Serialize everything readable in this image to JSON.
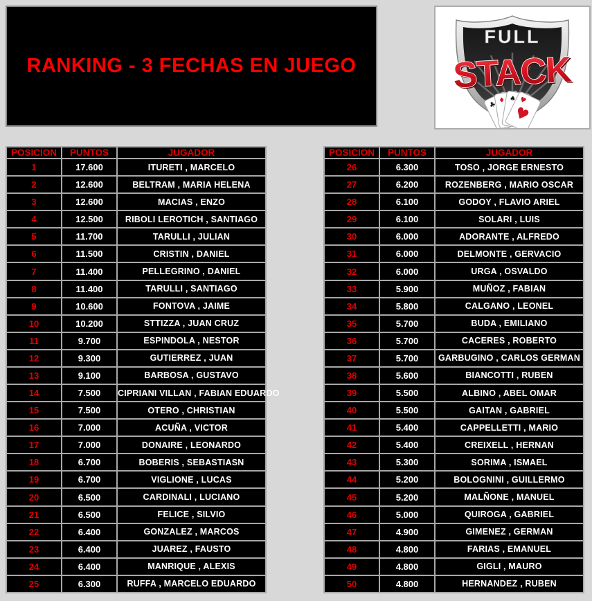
{
  "page": {
    "background": "#d8d8d8",
    "grid_color": "#a8a8a8",
    "cell_bg": "#000000",
    "accent_red": "#e00000",
    "title_red": "#fd0000",
    "text_white": "#ffffff"
  },
  "header": {
    "title": "RANKING - 3 FECHAS EN JUEGO"
  },
  "logo": {
    "line1": "FULL",
    "line2": "STACK",
    "cards": [
      {
        "suit": "♣",
        "color": "#1a1a1a"
      },
      {
        "suit": "♦",
        "color": "#d01325"
      },
      {
        "suit": "♠",
        "color": "#1a1a1a"
      },
      {
        "suit": "♥",
        "color": "#d01325"
      }
    ]
  },
  "tables": [
    {
      "headers": [
        "POSICION",
        "PUNTOS",
        "JUGADOR"
      ],
      "rows": [
        {
          "posicion": "1",
          "puntos": "17.600",
          "jugador": "ITURETI , MARCELO"
        },
        {
          "posicion": "2",
          "puntos": "12.600",
          "jugador": "BELTRAM , MARIA HELENA"
        },
        {
          "posicion": "3",
          "puntos": "12.600",
          "jugador": "MACIAS , ENZO"
        },
        {
          "posicion": "4",
          "puntos": "12.500",
          "jugador": "RIBOLI LEROTICH , SANTIAGO"
        },
        {
          "posicion": "5",
          "puntos": "11.700",
          "jugador": "TARULLI , JULIAN"
        },
        {
          "posicion": "6",
          "puntos": "11.500",
          "jugador": "CRISTIN , DANIEL"
        },
        {
          "posicion": "7",
          "puntos": "11.400",
          "jugador": "PELLEGRINO , DANIEL"
        },
        {
          "posicion": "8",
          "puntos": "11.400",
          "jugador": "TARULLI , SANTIAGO"
        },
        {
          "posicion": "9",
          "puntos": "10.600",
          "jugador": "FONTOVA , JAIME"
        },
        {
          "posicion": "10",
          "puntos": "10.200",
          "jugador": "STTIZZA , JUAN CRUZ"
        },
        {
          "posicion": "11",
          "puntos": "9.700",
          "jugador": "ESPINDOLA , NESTOR"
        },
        {
          "posicion": "12",
          "puntos": "9.300",
          "jugador": "GUTIERREZ , JUAN"
        },
        {
          "posicion": "13",
          "puntos": "9.100",
          "jugador": "BARBOSA , GUSTAVO"
        },
        {
          "posicion": "14",
          "puntos": "7.500",
          "jugador": "CIPRIANI VILLAN , FABIAN EDUARDO"
        },
        {
          "posicion": "15",
          "puntos": "7.500",
          "jugador": "OTERO , CHRISTIAN"
        },
        {
          "posicion": "16",
          "puntos": "7.000",
          "jugador": "ACUÑA , VICTOR"
        },
        {
          "posicion": "17",
          "puntos": "7.000",
          "jugador": "DONAIRE , LEONARDO"
        },
        {
          "posicion": "18",
          "puntos": "6.700",
          "jugador": "BOBERIS , SEBASTIASN"
        },
        {
          "posicion": "19",
          "puntos": "6.700",
          "jugador": "VIGLIONE , LUCAS"
        },
        {
          "posicion": "20",
          "puntos": "6.500",
          "jugador": "CARDINALI , LUCIANO"
        },
        {
          "posicion": "21",
          "puntos": "6.500",
          "jugador": "FELICE , SILVIO"
        },
        {
          "posicion": "22",
          "puntos": "6.400",
          "jugador": "GONZALEZ , MARCOS"
        },
        {
          "posicion": "23",
          "puntos": "6.400",
          "jugador": "JUAREZ , FAUSTO"
        },
        {
          "posicion": "24",
          "puntos": "6.400",
          "jugador": "MANRIQUE , ALEXIS"
        },
        {
          "posicion": "25",
          "puntos": "6.300",
          "jugador": "RUFFA , MARCELO EDUARDO"
        }
      ]
    },
    {
      "headers": [
        "POSICION",
        "PUNTOS",
        "JUGADOR"
      ],
      "rows": [
        {
          "posicion": "26",
          "puntos": "6.300",
          "jugador": "TOSO , JORGE ERNESTO"
        },
        {
          "posicion": "27",
          "puntos": "6.200",
          "jugador": "ROZENBERG , MARIO OSCAR"
        },
        {
          "posicion": "28",
          "puntos": "6.100",
          "jugador": "GODOY , FLAVIO ARIEL"
        },
        {
          "posicion": "29",
          "puntos": "6.100",
          "jugador": "SOLARI , LUIS"
        },
        {
          "posicion": "30",
          "puntos": "6.000",
          "jugador": "ADORANTE , ALFREDO"
        },
        {
          "posicion": "31",
          "puntos": "6.000",
          "jugador": "DELMONTE , GERVACIO"
        },
        {
          "posicion": "32",
          "puntos": "6.000",
          "jugador": "URGA , OSVALDO"
        },
        {
          "posicion": "33",
          "puntos": "5.900",
          "jugador": "MUÑOZ , FABIAN"
        },
        {
          "posicion": "34",
          "puntos": "5.800",
          "jugador": "CALGANO , LEONEL"
        },
        {
          "posicion": "35",
          "puntos": "5.700",
          "jugador": "BUDA , EMILIANO"
        },
        {
          "posicion": "36",
          "puntos": "5.700",
          "jugador": "CACERES , ROBERTO"
        },
        {
          "posicion": "37",
          "puntos": "5.700",
          "jugador": "GARBUGINO , CARLOS GERMAN"
        },
        {
          "posicion": "38",
          "puntos": "5.600",
          "jugador": "BIANCOTTI , RUBEN"
        },
        {
          "posicion": "39",
          "puntos": "5.500",
          "jugador": "ALBINO , ABEL OMAR"
        },
        {
          "posicion": "40",
          "puntos": "5.500",
          "jugador": "GAITAN , GABRIEL"
        },
        {
          "posicion": "41",
          "puntos": "5.400",
          "jugador": "CAPPELLETTI , MARIO"
        },
        {
          "posicion": "42",
          "puntos": "5.400",
          "jugador": "CREIXELL , HERNAN"
        },
        {
          "posicion": "43",
          "puntos": "5.300",
          "jugador": "SORIMA , ISMAEL"
        },
        {
          "posicion": "44",
          "puntos": "5.200",
          "jugador": "BOLOGNINI , GUILLERMO"
        },
        {
          "posicion": "45",
          "puntos": "5.200",
          "jugador": "MALÑONE , MANUEL"
        },
        {
          "posicion": "46",
          "puntos": "5.000",
          "jugador": "QUIROGA , GABRIEL"
        },
        {
          "posicion": "47",
          "puntos": "4.900",
          "jugador": "GIMENEZ , GERMAN"
        },
        {
          "posicion": "48",
          "puntos": "4.800",
          "jugador": "FARIAS , EMANUEL"
        },
        {
          "posicion": "49",
          "puntos": "4.800",
          "jugador": "GIGLI , MAURO"
        },
        {
          "posicion": "50",
          "puntos": "4.800",
          "jugador": "HERNANDEZ , RUBEN"
        }
      ]
    }
  ]
}
